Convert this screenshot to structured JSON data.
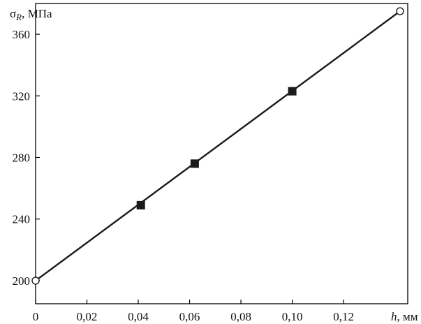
{
  "chart_data": {
    "type": "line",
    "ylabel_symbol": "σ",
    "ylabel_subscript": "R",
    "ylabel_unit": ", МПа",
    "xlabel_symbol": "h",
    "xlabel_unit": ", мм",
    "xlim": [
      0,
      0.145
    ],
    "ylim": [
      185,
      380
    ],
    "x_ticks": [
      0,
      0.02,
      0.04,
      0.06,
      0.08,
      0.1,
      0.12
    ],
    "x_tick_labels": [
      "0",
      "0,02",
      "0,04",
      "0,06",
      "0,08",
      "0,10",
      "0,12"
    ],
    "y_ticks": [
      200,
      240,
      280,
      320,
      360
    ],
    "y_tick_labels": [
      "200",
      "240",
      "280",
      "320",
      "360"
    ],
    "grid": false,
    "series": [
      {
        "line": {
          "x": [
            0,
            0.142
          ],
          "y": [
            200,
            375
          ]
        },
        "filled_points": {
          "x": [
            0.041,
            0.062,
            0.1
          ],
          "y": [
            249,
            276,
            323
          ]
        },
        "open_points": {
          "x": [
            0,
            0.142
          ],
          "y": [
            200,
            375
          ]
        }
      }
    ],
    "colors": {
      "line": "#1a1a1a",
      "marker": "#1a1a1a",
      "background": "#ffffff"
    }
  }
}
